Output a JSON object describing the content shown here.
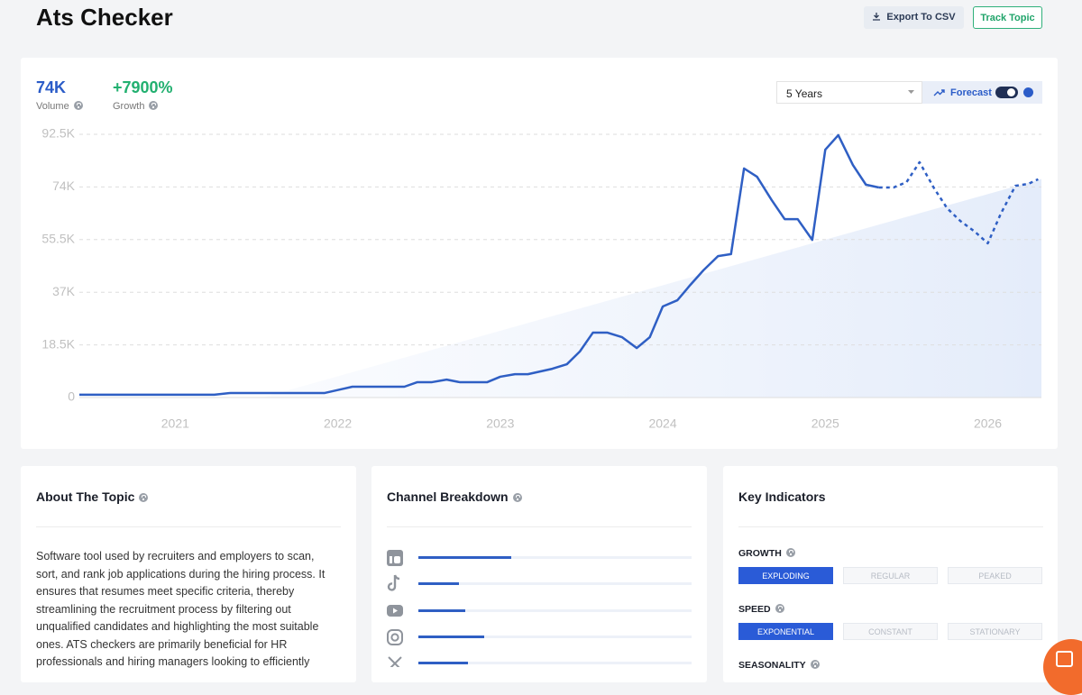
{
  "header": {
    "title": "Ats Checker",
    "export_button": "Export To CSV",
    "track_button": "Track Topic"
  },
  "metrics": [
    {
      "value": "74K",
      "label": "Volume",
      "color": "#2b5cc8"
    },
    {
      "value": "+7900%",
      "label": "Growth",
      "color": "#22b070"
    }
  ],
  "controls": {
    "range": "5 Years",
    "forecast": "Forecast"
  },
  "chart_data": {
    "type": "line",
    "x": [
      2020.41,
      2021.24,
      2021.34,
      2021.92,
      2022.09,
      2022.41,
      2022.49,
      2022.58,
      2022.67,
      2022.75,
      2022.92,
      2023.0,
      2023.09,
      2023.17,
      2023.32,
      2023.41,
      2023.49,
      2023.57,
      2023.66,
      2023.75,
      2023.84,
      2023.92,
      2024.0,
      2024.09,
      2024.17,
      2024.25,
      2024.34,
      2024.42,
      2024.5,
      2024.58,
      2024.67,
      2024.75,
      2024.83,
      2024.92,
      2025.0,
      2025.08,
      2025.17,
      2025.25,
      2025.33,
      2025.42,
      2025.5,
      2025.58,
      2025.67,
      2025.75,
      2025.83,
      2025.92,
      2026.0,
      2026.08,
      2026.17,
      2026.25,
      2026.31
    ],
    "series": [
      {
        "color": "#2f5fc4",
        "dashed": false,
        "values": [
          1000,
          1000,
          1600,
          1600,
          3800,
          3800,
          5400,
          5400,
          6300,
          5400,
          5400,
          7300,
          8200,
          8200,
          10100,
          11700,
          16200,
          22800,
          22800,
          21200,
          17400,
          21200,
          32000,
          34200,
          39600,
          44700,
          49700,
          50400,
          80500,
          77600,
          69400,
          62700,
          62700,
          55400,
          87100,
          92200,
          81700,
          74800,
          73800,
          null,
          null,
          null,
          null,
          null,
          null,
          null,
          null,
          null,
          null,
          null,
          null
        ]
      },
      {
        "color": "#2f5fc4",
        "dashed": true,
        "values": [
          null,
          null,
          null,
          null,
          null,
          null,
          null,
          null,
          null,
          null,
          null,
          null,
          null,
          null,
          null,
          null,
          null,
          null,
          null,
          null,
          null,
          null,
          null,
          null,
          null,
          null,
          null,
          null,
          null,
          null,
          null,
          null,
          null,
          null,
          null,
          null,
          null,
          null,
          73800,
          73800,
          75700,
          82700,
          73500,
          66500,
          62100,
          58300,
          54200,
          64600,
          74400,
          75100,
          76700
        ]
      }
    ],
    "xlim": [
      2020.41,
      2026.33
    ],
    "xticks": [
      2021,
      2022,
      2023,
      2024,
      2025,
      2026
    ],
    "ylim": [
      0,
      92500
    ],
    "yticks": [
      0,
      {
        "value": 18500,
        "label": "18.5K"
      },
      {
        "value": 37000,
        "label": "37K"
      },
      {
        "value": 55500,
        "label": "55.5K"
      },
      {
        "value": 74000,
        "label": "74K"
      },
      {
        "value": 92500,
        "label": "92.5K"
      }
    ],
    "grid": true
  },
  "about": {
    "title": "About The Topic",
    "lines": [
      "Software tool used by recruiters and employers to scan,",
      "sort, and rank job applications during the hiring process. It",
      "ensures that resumes meet specific criteria, thereby",
      "streamlining the recruitment process by filtering out",
      "unqualified candidates and highlighting the most suitable",
      "ones. ATS checkers are primarily beneficial for HR",
      "professionals and hiring managers looking to efficiently"
    ]
  },
  "channels": {
    "title": "Channel Breakdown",
    "values": [
      34,
      15,
      17,
      24,
      18
    ],
    "color": "#2f5fc4"
  },
  "indicators": {
    "title": "Key Indicators",
    "groups": [
      {
        "label": "GROWTH",
        "options": [
          "EXPLODING",
          "REGULAR",
          "PEAKED"
        ],
        "selected": 0
      },
      {
        "label": "SPEED",
        "options": [
          "EXPONENTIAL",
          "CONSTANT",
          "STATIONARY"
        ],
        "selected": 0
      },
      {
        "label": "SEASONALITY",
        "options": [],
        "selected": 0
      }
    ]
  }
}
